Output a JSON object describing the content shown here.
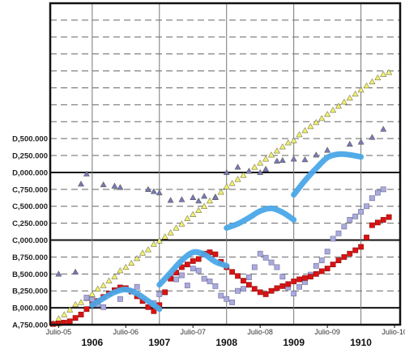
{
  "chart_data": {
    "type": "scatter",
    "title": "",
    "xlabel": "",
    "ylabel": "",
    "x_unit": "month index (0 = Julio-05)",
    "xlim": [
      -1.5,
      61
    ],
    "ylim": [
      4750000,
      9500000
    ],
    "y_ticks": [
      4750000,
      5000000,
      5250000,
      5500000,
      5750000,
      6000000,
      6250000,
      6500000,
      6750000,
      7000000,
      7250000,
      7500000,
      7750000,
      8000000,
      8250000,
      8500000,
      8750000,
      9000000,
      9250000,
      9500000
    ],
    "y_tick_labels": [
      "A,750.000",
      "B,000.000",
      "B,250.000",
      "B,500.000",
      "B,750.000",
      "C,000.000",
      "C,250.000",
      "C,500.000",
      "C,750.000",
      "D,000.000",
      "D,250.000",
      "D,500.000"
    ],
    "y_tick_label_values": [
      4750000,
      5000000,
      5250000,
      5500000,
      5750000,
      6000000,
      6250000,
      6500000,
      6750000,
      7000000,
      7250000,
      7500000
    ],
    "y_major_lines": [
      5000000,
      6000000,
      7000000
    ],
    "x_ticks": [
      0,
      12,
      24,
      36,
      48,
      60
    ],
    "x_tick_labels": [
      "Julio-05",
      "Julio-06",
      "Julio-07",
      "Julio-08",
      "Julio-09",
      "Julio-10"
    ],
    "year_markers": [
      6,
      18,
      30,
      42,
      54
    ],
    "year_labels": [
      "1906",
      "1907",
      "1908",
      "1909",
      "1910"
    ],
    "grid": true,
    "legend": "none",
    "series": [
      {
        "marker": "triangle",
        "color": "#f2ef6e",
        "points": [
          [
            -1,
            4770000
          ],
          [
            0,
            4840000
          ],
          [
            1,
            4900000
          ],
          [
            2,
            4970000
          ],
          [
            3,
            5050000
          ],
          [
            4,
            5080000
          ],
          [
            5,
            5140000
          ],
          [
            6,
            5200000
          ],
          [
            7,
            5280000
          ],
          [
            8,
            5330000
          ],
          [
            9,
            5400000
          ],
          [
            10,
            5460000
          ],
          [
            11,
            5550000
          ],
          [
            12,
            5600000
          ],
          [
            13,
            5660000
          ],
          [
            14,
            5730000
          ],
          [
            15,
            5810000
          ],
          [
            16,
            5860000
          ],
          [
            17,
            5940000
          ],
          [
            18,
            5990000
          ],
          [
            19,
            6050000
          ],
          [
            20,
            6110000
          ],
          [
            21,
            6180000
          ],
          [
            22,
            6240000
          ],
          [
            23,
            6320000
          ],
          [
            24,
            6380000
          ],
          [
            25,
            6440000
          ],
          [
            26,
            6500000
          ],
          [
            27,
            6580000
          ],
          [
            28,
            6640000
          ],
          [
            29,
            6710000
          ],
          [
            30,
            6790000
          ],
          [
            31,
            6840000
          ],
          [
            32,
            6900000
          ],
          [
            33,
            6960000
          ],
          [
            34,
            7020000
          ],
          [
            35,
            7080000
          ],
          [
            36,
            7140000
          ],
          [
            37,
            7200000
          ],
          [
            38,
            7260000
          ],
          [
            39,
            7320000
          ],
          [
            40,
            7380000
          ],
          [
            41,
            7440000
          ],
          [
            42,
            7470000
          ],
          [
            43,
            7560000
          ],
          [
            44,
            7620000
          ],
          [
            45,
            7680000
          ],
          [
            46,
            7740000
          ],
          [
            47,
            7800000
          ],
          [
            48,
            7860000
          ],
          [
            49,
            7920000
          ],
          [
            50,
            7980000
          ],
          [
            51,
            8040000
          ],
          [
            52,
            8100000
          ],
          [
            53,
            8160000
          ],
          [
            54,
            8220000
          ],
          [
            55,
            8280000
          ],
          [
            56,
            8340000
          ],
          [
            57,
            8400000
          ],
          [
            58,
            8450000
          ],
          [
            59,
            8480000
          ]
        ]
      },
      {
        "marker": "triangle",
        "color": "#7777bb",
        "points": [
          [
            0,
            5500000
          ],
          [
            3,
            5530000
          ],
          [
            4,
            6830000
          ],
          [
            5,
            6980000
          ],
          [
            8,
            6820000
          ],
          [
            10,
            6800000
          ],
          [
            11,
            6780000
          ],
          [
            16,
            6750000
          ],
          [
            17,
            6720000
          ],
          [
            18,
            6700000
          ],
          [
            20,
            6590000
          ],
          [
            22,
            6600000
          ],
          [
            24,
            6630000
          ],
          [
            25,
            6580000
          ],
          [
            26,
            6650000
          ],
          [
            28,
            6630000
          ],
          [
            30,
            7000000
          ],
          [
            32,
            7080000
          ],
          [
            34,
            7020000
          ],
          [
            36,
            7000000
          ],
          [
            37,
            7050000
          ],
          [
            39,
            7170000
          ],
          [
            40,
            7180000
          ],
          [
            42,
            7200000
          ],
          [
            44,
            7190000
          ],
          [
            46,
            7260000
          ],
          [
            48,
            7330000
          ],
          [
            52,
            7420000
          ],
          [
            54,
            7450000
          ],
          [
            56,
            7520000
          ],
          [
            58,
            7640000
          ]
        ]
      },
      {
        "marker": "square",
        "color": "#aaaadd",
        "points": [
          [
            5,
            5150000
          ],
          [
            6,
            5120000
          ],
          [
            7,
            5050000
          ],
          [
            8,
            5010000
          ],
          [
            11,
            5130000
          ],
          [
            14,
            5310000
          ],
          [
            17,
            5070000
          ],
          [
            18,
            5200000
          ],
          [
            19,
            5230000
          ],
          [
            20,
            5450000
          ],
          [
            21,
            5420000
          ],
          [
            22,
            5480000
          ],
          [
            23,
            5330000
          ],
          [
            24,
            5580000
          ],
          [
            25,
            5550000
          ],
          [
            26,
            5430000
          ],
          [
            27,
            5390000
          ],
          [
            28,
            5320000
          ],
          [
            29,
            5180000
          ],
          [
            30,
            5130000
          ],
          [
            31,
            5080000
          ],
          [
            32,
            5250000
          ],
          [
            33,
            5280000
          ],
          [
            34,
            5450000
          ],
          [
            35,
            5600000
          ],
          [
            36,
            5800000
          ],
          [
            37,
            5740000
          ],
          [
            38,
            5670000
          ],
          [
            39,
            5600000
          ],
          [
            40,
            5460000
          ],
          [
            41,
            5300000
          ],
          [
            42,
            5210000
          ],
          [
            43,
            5310000
          ],
          [
            44,
            5380000
          ],
          [
            45,
            5490000
          ],
          [
            46,
            5620000
          ],
          [
            47,
            5700000
          ],
          [
            48,
            5830000
          ],
          [
            49,
            6020000
          ],
          [
            50,
            6100000
          ],
          [
            51,
            6200000
          ],
          [
            52,
            6300000
          ],
          [
            53,
            6350000
          ],
          [
            54,
            6420000
          ],
          [
            55,
            6500000
          ],
          [
            56,
            6620000
          ],
          [
            57,
            6700000
          ],
          [
            58,
            6750000
          ]
        ]
      },
      {
        "marker": "square",
        "color": "#dd1111",
        "points": [
          [
            -2,
            4760000
          ],
          [
            -1,
            4760000
          ],
          [
            0,
            4770000
          ],
          [
            1,
            4780000
          ],
          [
            2,
            4800000
          ],
          [
            3,
            4850000
          ],
          [
            4,
            4900000
          ],
          [
            5,
            4980000
          ],
          [
            6,
            5050000
          ],
          [
            7,
            5100000
          ],
          [
            8,
            5160000
          ],
          [
            9,
            5210000
          ],
          [
            10,
            5260000
          ],
          [
            11,
            5300000
          ],
          [
            12,
            5290000
          ],
          [
            13,
            5240000
          ],
          [
            14,
            5170000
          ],
          [
            15,
            5100000
          ],
          [
            16,
            5010000
          ],
          [
            17,
            4950000
          ],
          [
            18,
            5040000
          ],
          [
            19,
            5230000
          ],
          [
            20,
            5430000
          ],
          [
            21,
            5520000
          ],
          [
            22,
            5600000
          ],
          [
            23,
            5640000
          ],
          [
            24,
            5690000
          ],
          [
            25,
            5720000
          ],
          [
            26,
            5800000
          ],
          [
            27,
            5820000
          ],
          [
            28,
            5790000
          ],
          [
            29,
            5680000
          ],
          [
            30,
            5600000
          ],
          [
            31,
            5530000
          ],
          [
            32,
            5470000
          ],
          [
            33,
            5400000
          ],
          [
            34,
            5340000
          ],
          [
            35,
            5280000
          ],
          [
            36,
            5230000
          ],
          [
            37,
            5200000
          ],
          [
            38,
            5250000
          ],
          [
            39,
            5290000
          ],
          [
            40,
            5320000
          ],
          [
            41,
            5350000
          ],
          [
            42,
            5390000
          ],
          [
            43,
            5420000
          ],
          [
            44,
            5440000
          ],
          [
            45,
            5460000
          ],
          [
            46,
            5500000
          ],
          [
            47,
            5540000
          ],
          [
            48,
            5580000
          ],
          [
            49,
            5640000
          ],
          [
            50,
            5700000
          ],
          [
            51,
            5750000
          ],
          [
            52,
            5800000
          ],
          [
            53,
            5850000
          ],
          [
            54,
            5900000
          ],
          [
            55,
            6040000
          ],
          [
            56,
            6220000
          ],
          [
            57,
            6260000
          ],
          [
            58,
            6300000
          ],
          [
            59,
            6340000
          ]
        ]
      }
    ],
    "trend_curves": [
      {
        "color": "#4aa8e8",
        "points": [
          [
            6,
            5040000
          ],
          [
            8,
            5140000
          ],
          [
            10,
            5230000
          ],
          [
            12,
            5270000
          ],
          [
            14,
            5210000
          ],
          [
            16,
            5100000
          ],
          [
            18,
            4980000
          ]
        ]
      },
      {
        "color": "#4aa8e8",
        "points": [
          [
            18,
            5340000
          ],
          [
            20,
            5520000
          ],
          [
            22,
            5700000
          ],
          [
            24,
            5820000
          ],
          [
            26,
            5790000
          ],
          [
            28,
            5680000
          ],
          [
            30,
            5620000
          ]
        ]
      },
      {
        "color": "#4aa8e8",
        "points": [
          [
            30,
            6180000
          ],
          [
            32,
            6240000
          ],
          [
            34,
            6330000
          ],
          [
            36,
            6430000
          ],
          [
            38,
            6470000
          ],
          [
            40,
            6410000
          ],
          [
            42,
            6300000
          ]
        ]
      },
      {
        "color": "#4aa8e8",
        "points": [
          [
            42,
            6670000
          ],
          [
            44,
            6880000
          ],
          [
            46,
            7060000
          ],
          [
            48,
            7220000
          ],
          [
            50,
            7270000
          ],
          [
            52,
            7260000
          ],
          [
            54,
            7230000
          ]
        ]
      }
    ]
  }
}
